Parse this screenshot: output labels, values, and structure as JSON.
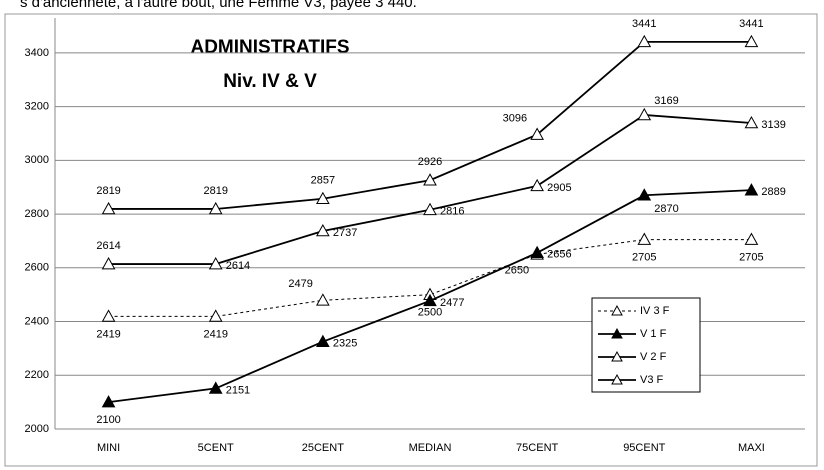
{
  "header_text": "s d'ancienneté, à l'autre bout, une Femme V3, payée 3 440.",
  "chart_data": {
    "type": "line",
    "title": "ADMINISTRATIFS",
    "subtitle": "Niv. IV & V",
    "categories": [
      "MINI",
      "5CENT",
      "25CENT",
      "MEDIAN",
      "75CENT",
      "95CENT",
      "MAXI"
    ],
    "series": [
      {
        "name": "IV 3 F",
        "color": "#000000",
        "dashed": true,
        "filled": false,
        "values": [
          2419,
          2419,
          2479,
          2500,
          2650,
          2705,
          2705
        ]
      },
      {
        "name": "V 1 F",
        "color": "#000000",
        "dashed": false,
        "filled": true,
        "values": [
          2100,
          2151,
          2325,
          2477,
          2656,
          2870,
          2889
        ]
      },
      {
        "name": "V 2 F",
        "color": "#000000",
        "dashed": false,
        "filled": false,
        "values": [
          2614,
          2614,
          2737,
          2816,
          2905,
          3169,
          3139
        ]
      },
      {
        "name": "V3 F",
        "color": "#000000",
        "dashed": false,
        "filled": false,
        "values": [
          2819,
          2819,
          2857,
          2926,
          3096,
          3441,
          3441
        ]
      }
    ],
    "ylim": [
      2000,
      3500
    ],
    "yticks": [
      2000,
      2200,
      2400,
      2600,
      2800,
      3000,
      3200,
      3400
    ],
    "grid": true,
    "legend": "lower right"
  }
}
